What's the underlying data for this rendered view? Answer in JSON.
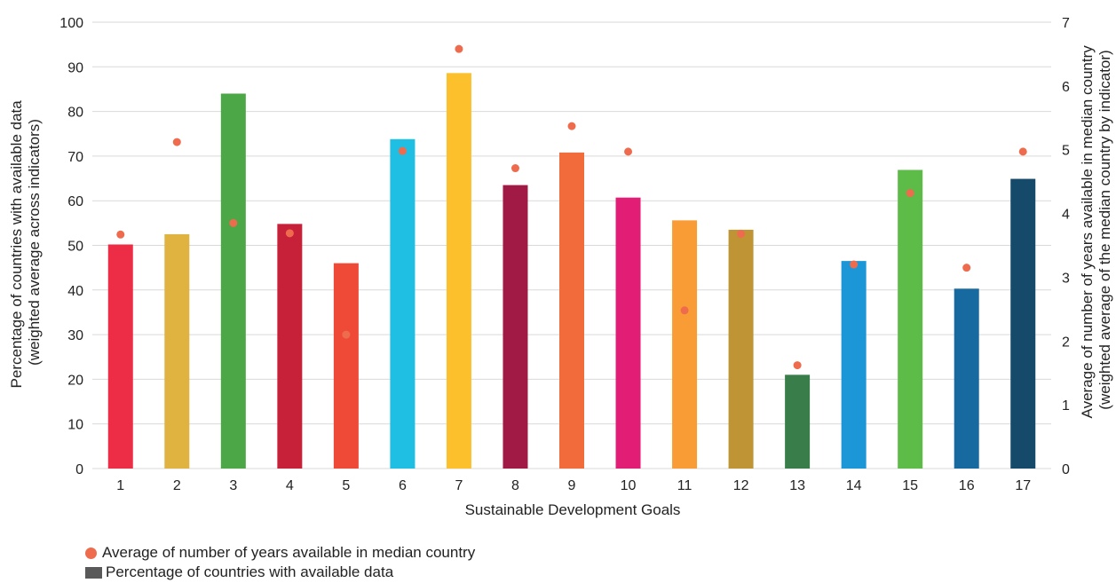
{
  "chart_data": {
    "type": "bar",
    "xlabel": "Sustainable Development Goals",
    "ylabel_left": [
      "Percentage of countries with available data",
      "(weighted average across indicators)"
    ],
    "ylabel_right": [
      "Average of number of years available in median country",
      "(weighted average of the median country by indicator)"
    ],
    "ylim_left": [
      0,
      100
    ],
    "yticks_left": [
      0,
      10,
      20,
      30,
      40,
      50,
      60,
      70,
      80,
      90,
      100
    ],
    "ylim_right": [
      0,
      7
    ],
    "yticks_right": [
      0,
      1,
      2,
      3,
      4,
      5,
      6,
      7
    ],
    "grid": true,
    "legend_position": "bottom-left",
    "categories": [
      "1",
      "2",
      "3",
      "4",
      "5",
      "6",
      "7",
      "8",
      "9",
      "10",
      "11",
      "12",
      "13",
      "14",
      "15",
      "16",
      "17"
    ],
    "series": [
      {
        "name": "Percentage of countries with available data",
        "kind": "bar",
        "axis": "left",
        "values": [
          50.2,
          52.5,
          84,
          54.8,
          46,
          73.8,
          88.6,
          63.5,
          70.8,
          60.7,
          55.6,
          53.5,
          21,
          46.5,
          66.9,
          40.3,
          64.9
        ],
        "colors": [
          "#ed2c46",
          "#e0b341",
          "#4ca746",
          "#c7213a",
          "#ef4a37",
          "#1fbee3",
          "#fcc02c",
          "#a11a45",
          "#f26b3a",
          "#e11d76",
          "#f99c36",
          "#be9435",
          "#397d4a",
          "#1b97d8",
          "#5dbb47",
          "#166aa0",
          "#154a6a"
        ]
      },
      {
        "name": "Average of number of years available in median country",
        "kind": "scatter",
        "axis": "right",
        "color": "#ee6c4d",
        "values": [
          3.67,
          5.12,
          3.85,
          3.69,
          2.1,
          4.98,
          6.58,
          4.71,
          5.37,
          4.97,
          2.48,
          3.68,
          1.62,
          3.2,
          4.32,
          3.15,
          4.97
        ]
      }
    ]
  },
  "legend": {
    "dot_label": "Average of number of years available in median country",
    "bar_label": "Percentage of countries with available data",
    "dot_color": "#ee6c4d",
    "bar_color": "#595959"
  }
}
